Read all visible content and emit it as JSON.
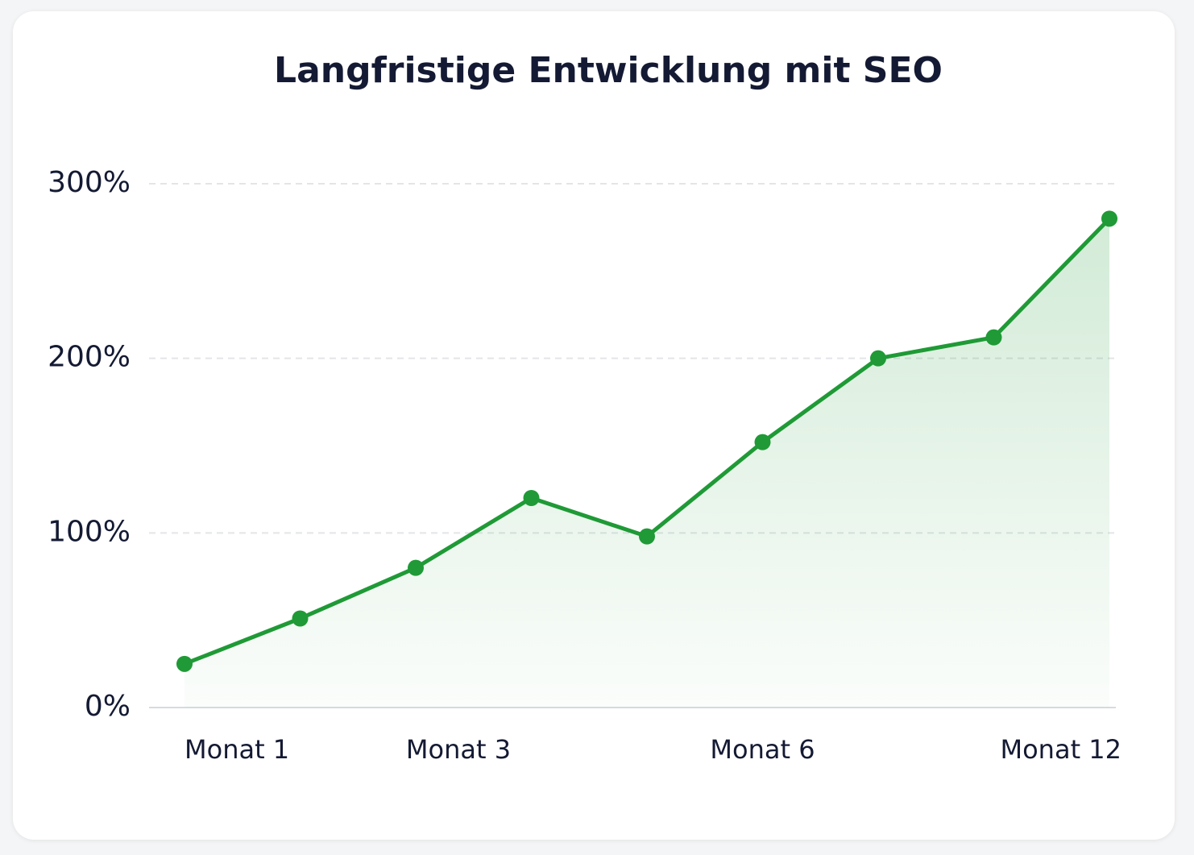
{
  "chart_data": {
    "type": "line",
    "title": "Langfristige Entwicklung mit SEO",
    "categories": [
      "Monat 1",
      null,
      "Monat 3",
      null,
      null,
      "Monat 6",
      null,
      null,
      "Monat 12"
    ],
    "series": [
      {
        "color": "#1f9a36",
        "values": [
          25,
          51,
          80,
          120,
          98,
          152,
          200,
          212,
          280
        ]
      }
    ],
    "ylim": [
      0,
      300
    ],
    "yticks": [
      {
        "value": 0,
        "label": "0%"
      },
      {
        "value": 100,
        "label": "100%"
      },
      {
        "value": 200,
        "label": "200%"
      },
      {
        "value": 300,
        "label": "300%"
      }
    ],
    "grid": true,
    "area": true
  }
}
